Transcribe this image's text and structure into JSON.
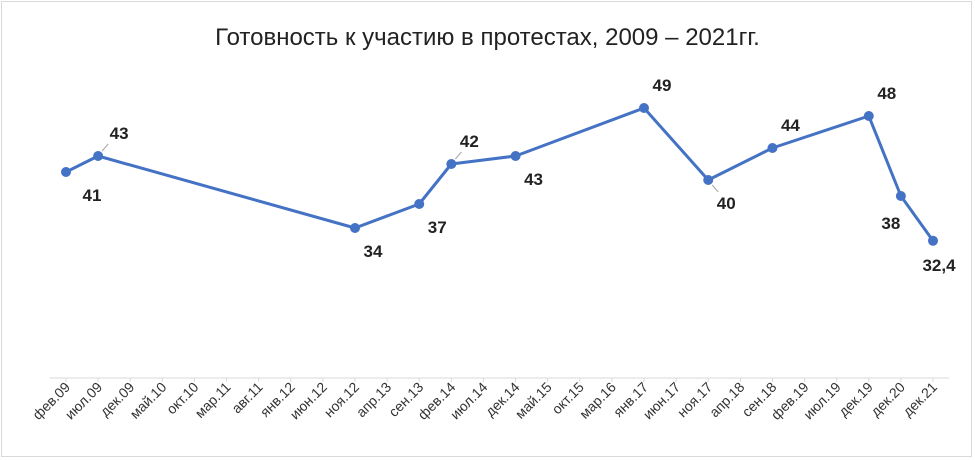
{
  "chart_data": {
    "type": "line",
    "title": "Готовность к участию в протестах,  2009 – 2021гг.",
    "xlabel": "",
    "ylabel": "",
    "ylim": [
      25,
      55
    ],
    "grid": false,
    "legend": "none",
    "series_color": "#4472c4",
    "categories": [
      "фев.09",
      "июл.09",
      "дек.09",
      "май.10",
      "окт.10",
      "мар.11",
      "авг.11",
      "янв.12",
      "июн.12",
      "ноя.12",
      "апр.13",
      "сен.13",
      "фев.14",
      "июл.14",
      "дек.14",
      "май.15",
      "окт.15",
      "мар.16",
      "янв.17",
      "июн.17",
      "ноя.17",
      "апр.18",
      "сен.18",
      "фев.19",
      "июл.19",
      "дек.19",
      "дек.20",
      "дек.21"
    ],
    "points": [
      {
        "category": "фев.09",
        "value": 41,
        "label": "41"
      },
      {
        "category": "июл.09",
        "value": 43,
        "label": "43"
      },
      {
        "category": "ноя.12",
        "value": 34,
        "label": "34"
      },
      {
        "category": "сен.13",
        "value": 37,
        "label": "37"
      },
      {
        "category": "фев.14",
        "value": 42,
        "label": "42"
      },
      {
        "category": "дек.14",
        "value": 43,
        "label": "43"
      },
      {
        "category": "янв.17",
        "value": 49,
        "label": "49"
      },
      {
        "category": "ноя.17",
        "value": 40,
        "label": "40"
      },
      {
        "category": "сен.18",
        "value": 44,
        "label": "44"
      },
      {
        "category": "дек.19",
        "value": 48,
        "label": "48"
      },
      {
        "category": "дек.20",
        "value": 38,
        "label": "38"
      },
      {
        "category": "дек.21",
        "value": 32.4,
        "label": "32,4"
      }
    ]
  }
}
